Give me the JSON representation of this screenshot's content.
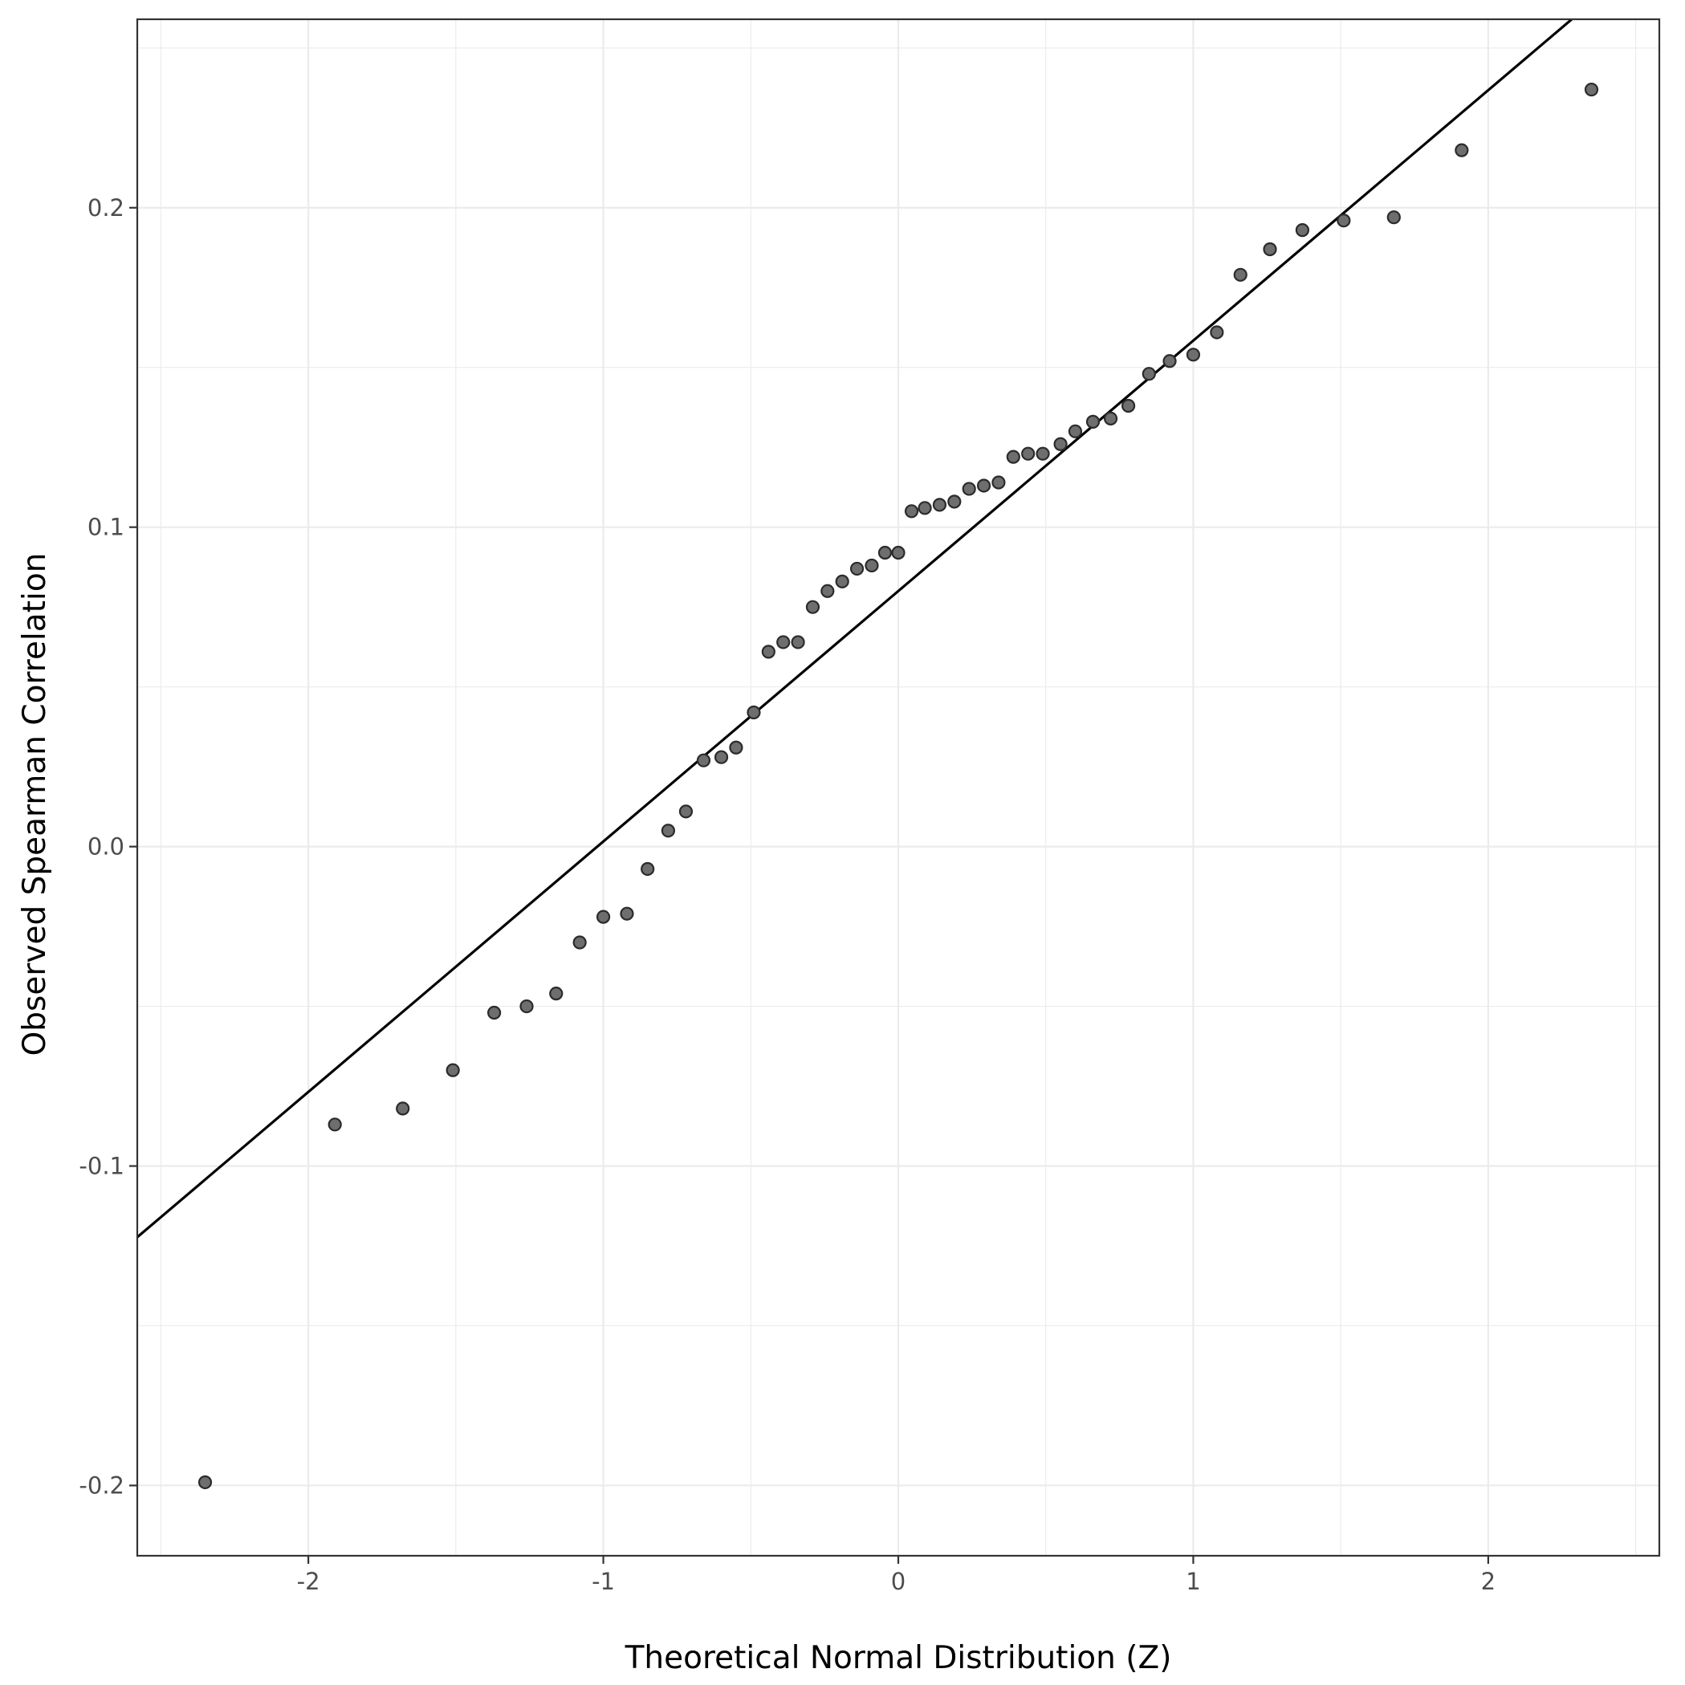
{
  "chart_data": {
    "type": "scatter",
    "title": "",
    "xlabel": "Theoretical Normal Distribution (Z)",
    "ylabel": "Observed Spearman Correlation",
    "xlim": [
      -2.58,
      2.58
    ],
    "ylim": [
      -0.222,
      0.259
    ],
    "x_ticks": [
      -2,
      -1,
      0,
      1,
      2
    ],
    "x_tick_labels": [
      "-2",
      "-1",
      "0",
      "1",
      "2"
    ],
    "y_ticks": [
      -0.2,
      -0.1,
      0.0,
      0.1,
      0.2
    ],
    "y_tick_labels": [
      "-0.2",
      "-0.1",
      "0.0",
      "0.1",
      "0.2"
    ],
    "grid": true,
    "legend": "none",
    "point_color": "#6e6e6e",
    "line_color": "#000000",
    "reference_line": {
      "intercept": 0.08,
      "slope": 0.0784
    },
    "points": [
      {
        "x": -2.35,
        "y": -0.199
      },
      {
        "x": -1.91,
        "y": -0.087
      },
      {
        "x": -1.68,
        "y": -0.082
      },
      {
        "x": -1.51,
        "y": -0.07
      },
      {
        "x": -1.37,
        "y": -0.052
      },
      {
        "x": -1.26,
        "y": -0.05
      },
      {
        "x": -1.16,
        "y": -0.046
      },
      {
        "x": -1.08,
        "y": -0.03
      },
      {
        "x": -1.0,
        "y": -0.022
      },
      {
        "x": -0.92,
        "y": -0.021
      },
      {
        "x": -0.85,
        "y": -0.007
      },
      {
        "x": -0.78,
        "y": 0.005
      },
      {
        "x": -0.72,
        "y": 0.011
      },
      {
        "x": -0.66,
        "y": 0.027
      },
      {
        "x": -0.6,
        "y": 0.028
      },
      {
        "x": -0.55,
        "y": 0.031
      },
      {
        "x": -0.49,
        "y": 0.042
      },
      {
        "x": -0.44,
        "y": 0.061
      },
      {
        "x": -0.39,
        "y": 0.064
      },
      {
        "x": -0.34,
        "y": 0.064
      },
      {
        "x": -0.29,
        "y": 0.075
      },
      {
        "x": -0.24,
        "y": 0.08
      },
      {
        "x": -0.19,
        "y": 0.083
      },
      {
        "x": -0.14,
        "y": 0.087
      },
      {
        "x": -0.09,
        "y": 0.088
      },
      {
        "x": -0.045,
        "y": 0.092
      },
      {
        "x": 0.0,
        "y": 0.092
      },
      {
        "x": 0.045,
        "y": 0.105
      },
      {
        "x": 0.09,
        "y": 0.106
      },
      {
        "x": 0.14,
        "y": 0.107
      },
      {
        "x": 0.19,
        "y": 0.108
      },
      {
        "x": 0.24,
        "y": 0.112
      },
      {
        "x": 0.29,
        "y": 0.113
      },
      {
        "x": 0.34,
        "y": 0.114
      },
      {
        "x": 0.39,
        "y": 0.122
      },
      {
        "x": 0.44,
        "y": 0.123
      },
      {
        "x": 0.49,
        "y": 0.123
      },
      {
        "x": 0.55,
        "y": 0.126
      },
      {
        "x": 0.6,
        "y": 0.13
      },
      {
        "x": 0.66,
        "y": 0.133
      },
      {
        "x": 0.72,
        "y": 0.134
      },
      {
        "x": 0.78,
        "y": 0.138
      },
      {
        "x": 0.85,
        "y": 0.148
      },
      {
        "x": 0.92,
        "y": 0.152
      },
      {
        "x": 1.0,
        "y": 0.154
      },
      {
        "x": 1.08,
        "y": 0.161
      },
      {
        "x": 1.16,
        "y": 0.179
      },
      {
        "x": 1.26,
        "y": 0.187
      },
      {
        "x": 1.37,
        "y": 0.193
      },
      {
        "x": 1.51,
        "y": 0.196
      },
      {
        "x": 1.68,
        "y": 0.197
      },
      {
        "x": 1.91,
        "y": 0.218
      },
      {
        "x": 2.35,
        "y": 0.237
      }
    ]
  }
}
